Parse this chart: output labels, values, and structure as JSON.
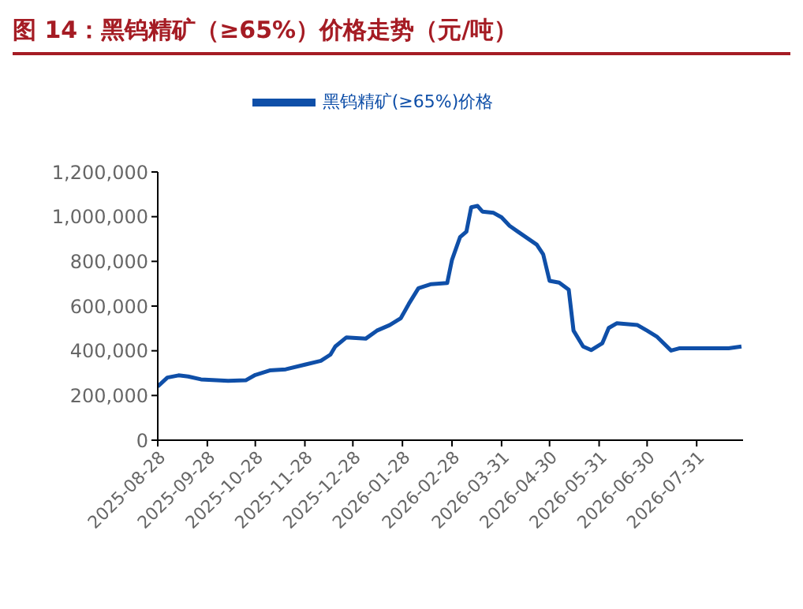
{
  "chart_data": {
    "type": "line",
    "title": "图 14：黑钨精矿（≥65%）价格走势（元/吨）",
    "x": [
      "2025-08-28",
      "2025-09-03",
      "2025-09-10",
      "2025-09-16",
      "2025-09-24",
      "2025-10-11",
      "2025-10-22",
      "2025-10-28",
      "2025-11-06",
      "2025-11-16",
      "2025-11-28",
      "2025-12-08",
      "2025-12-14",
      "2025-12-17",
      "2025-12-24",
      "2026-01-05",
      "2026-01-12",
      "2026-01-20",
      "2026-01-27",
      "2026-02-01",
      "2026-02-07",
      "2026-02-15",
      "2026-02-25",
      "2026-02-28",
      "2026-03-05",
      "2026-03-09",
      "2026-03-12",
      "2026-03-16",
      "2026-03-19",
      "2026-03-26",
      "2026-03-31",
      "2026-04-05",
      "2026-04-10",
      "2026-04-22",
      "2026-04-26",
      "2026-04-30",
      "2026-05-06",
      "2026-05-12",
      "2026-05-15",
      "2026-05-21",
      "2026-05-26",
      "2026-06-02",
      "2026-06-06",
      "2026-06-11",
      "2026-06-24",
      "2026-06-30",
      "2026-07-06",
      "2026-07-15",
      "2026-07-20",
      "2026-08-20",
      "2026-08-28"
    ],
    "series": [
      {
        "name": "黑钨精矿(≥65%)价格",
        "color": "#0f4fa8",
        "values": [
          240000,
          280000,
          290000,
          285000,
          272000,
          266000,
          268000,
          292000,
          312000,
          317000,
          338000,
          355000,
          383000,
          419000,
          460000,
          454000,
          490000,
          515000,
          546000,
          610000,
          680000,
          698000,
          703000,
          807000,
          908000,
          933000,
          1042000,
          1048000,
          1023000,
          1017000,
          997000,
          959000,
          934000,
          875000,
          832000,
          713000,
          705000,
          673000,
          490000,
          419000,
          403000,
          434000,
          502000,
          523000,
          515000,
          490000,
          464000,
          401000,
          411000,
          411000,
          419000
        ]
      }
    ],
    "xlim": [
      "2025-08-28",
      "2026-08-29"
    ],
    "xticks": [
      "2025-08-28",
      "2025-09-28",
      "2025-10-28",
      "2025-11-28",
      "2025-12-28",
      "2026-01-28",
      "2026-02-28",
      "2026-03-31",
      "2026-04-30",
      "2026-05-31",
      "2026-06-30",
      "2026-07-31"
    ],
    "ylim": [
      0,
      1200000
    ],
    "yticks": [
      {
        "value": 0,
        "label": "0"
      },
      {
        "value": 200000,
        "label": "200,000"
      },
      {
        "value": 400000,
        "label": "400,000"
      },
      {
        "value": 600000,
        "label": "600,000"
      },
      {
        "value": 800000,
        "label": "800,000"
      },
      {
        "value": 1000000,
        "label": "1,000,000"
      },
      {
        "value": 1200000,
        "label": "1,200,000"
      }
    ],
    "legend": "top",
    "grid": false,
    "marker": "none",
    "line_style": "solid"
  }
}
